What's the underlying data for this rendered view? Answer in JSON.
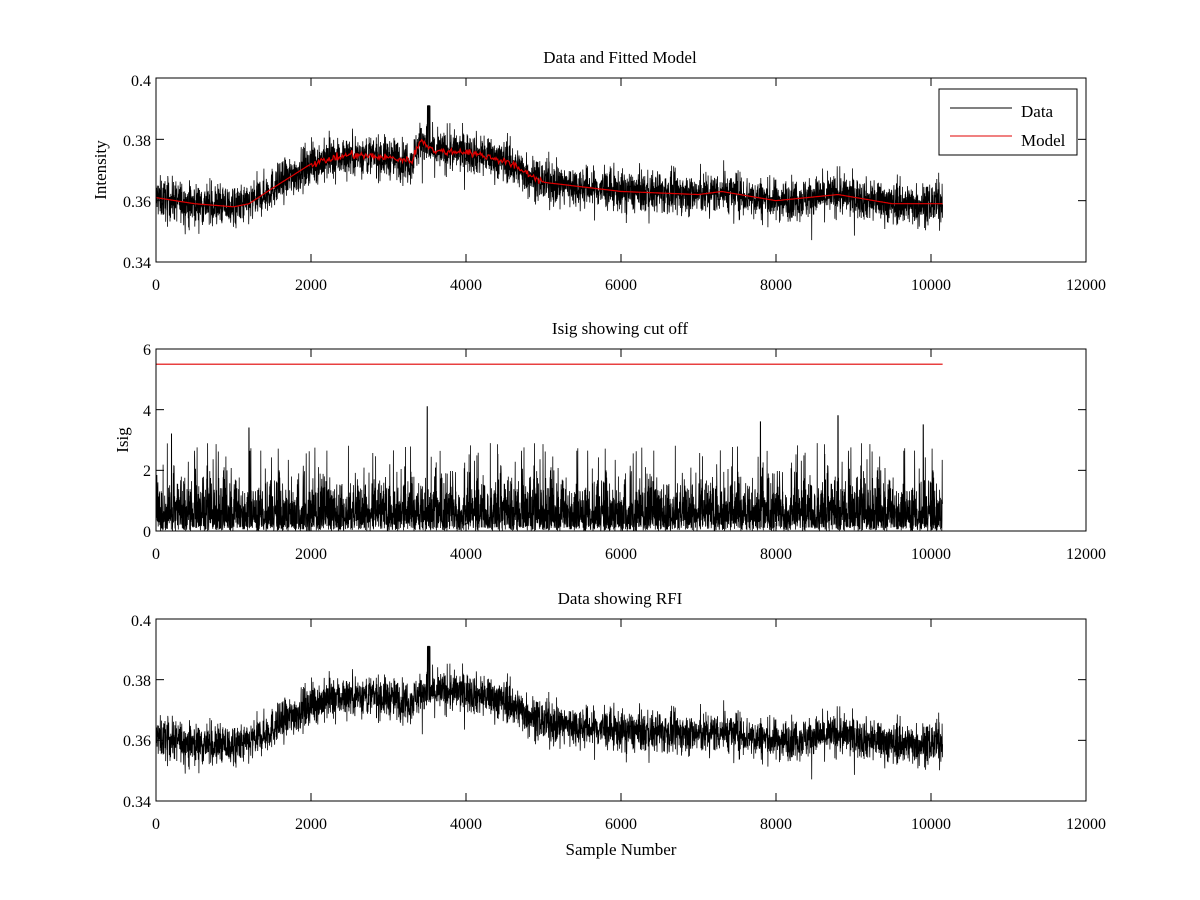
{
  "chart_data": [
    {
      "type": "line",
      "title": "Data and Fitted Model",
      "xlabel": "",
      "ylabel": "Intensity",
      "xlim": [
        0,
        12000
      ],
      "ylim": [
        0.34,
        0.4
      ],
      "xticks": [
        "0",
        "2000",
        "4000",
        "6000",
        "8000",
        "10000",
        "12000"
      ],
      "yticks": [
        "0.34",
        "0.36",
        "0.38",
        "0.4"
      ],
      "grid": false,
      "legend": {
        "placement": "top-right",
        "entries": [
          "Data",
          "Model"
        ]
      },
      "series": [
        {
          "name": "Data",
          "color": "#000000",
          "style": "noisy band around model, approx ±0.006 with spikes",
          "x": [
            0,
            500,
            1000,
            1200,
            1500,
            2000,
            2500,
            3000,
            3300,
            3420,
            3600,
            4000,
            4500,
            5000,
            6000,
            7000,
            7300,
            8000,
            8800,
            9500,
            10150
          ],
          "y": [
            0.361,
            0.359,
            0.358,
            0.359,
            0.364,
            0.372,
            0.375,
            0.374,
            0.373,
            0.38,
            0.376,
            0.376,
            0.373,
            0.366,
            0.363,
            0.362,
            0.363,
            0.36,
            0.362,
            0.359,
            0.359
          ]
        },
        {
          "name": "Model",
          "color": "#e00000",
          "x": [
            0,
            500,
            1000,
            1200,
            1500,
            2000,
            2500,
            3000,
            3300,
            3420,
            3600,
            4000,
            4500,
            5000,
            6000,
            7000,
            7300,
            8000,
            8800,
            9500,
            10150
          ],
          "y": [
            0.361,
            0.359,
            0.358,
            0.359,
            0.364,
            0.372,
            0.375,
            0.374,
            0.373,
            0.38,
            0.376,
            0.376,
            0.373,
            0.366,
            0.363,
            0.362,
            0.363,
            0.36,
            0.362,
            0.359,
            0.359
          ]
        }
      ]
    },
    {
      "type": "line",
      "title": "Isig showing cut off",
      "xlabel": "",
      "ylabel": "Isig",
      "xlim": [
        0,
        12000
      ],
      "ylim": [
        0,
        6
      ],
      "xticks": [
        "0",
        "2000",
        "4000",
        "6000",
        "8000",
        "10000",
        "12000"
      ],
      "yticks": [
        "0",
        "2",
        "4",
        "6"
      ],
      "grid": false,
      "series": [
        {
          "color": "#000000",
          "style": "dense noise between 0 and about 1.3, spikes to about 3.5",
          "x": [
            0,
            10150
          ],
          "typical_max": 1.3,
          "spikes": [
            [
              200,
              3.2
            ],
            [
              1200,
              3.4
            ],
            [
              3500,
              4.1
            ],
            [
              7800,
              3.6
            ],
            [
              8800,
              3.8
            ],
            [
              9900,
              3.5
            ]
          ]
        },
        {
          "color": "#e00000",
          "style": "cut off",
          "x": [
            0,
            10150
          ],
          "y": [
            5.5,
            5.5
          ]
        }
      ]
    },
    {
      "type": "line",
      "title": "Data showing RFI",
      "xlabel": "Sample Number",
      "ylabel": "",
      "xlim": [
        0,
        12000
      ],
      "ylim": [
        0.34,
        0.4
      ],
      "xticks": [
        "0",
        "2000",
        "4000",
        "6000",
        "8000",
        "10000",
        "12000"
      ],
      "yticks": [
        "0.34",
        "0.36",
        "0.38",
        "0.4"
      ],
      "grid": false,
      "series": [
        {
          "color": "#000000",
          "style": "noisy band, approx ±0.006 with spikes",
          "x": [
            0,
            500,
            1000,
            1200,
            1500,
            2000,
            2500,
            3000,
            3300,
            3420,
            3600,
            4000,
            4500,
            5000,
            6000,
            7000,
            7300,
            8000,
            8800,
            9500,
            10150
          ],
          "y": [
            0.361,
            0.359,
            0.358,
            0.359,
            0.364,
            0.372,
            0.375,
            0.374,
            0.373,
            0.376,
            0.376,
            0.376,
            0.373,
            0.366,
            0.363,
            0.362,
            0.363,
            0.36,
            0.362,
            0.359,
            0.359
          ]
        }
      ]
    }
  ]
}
